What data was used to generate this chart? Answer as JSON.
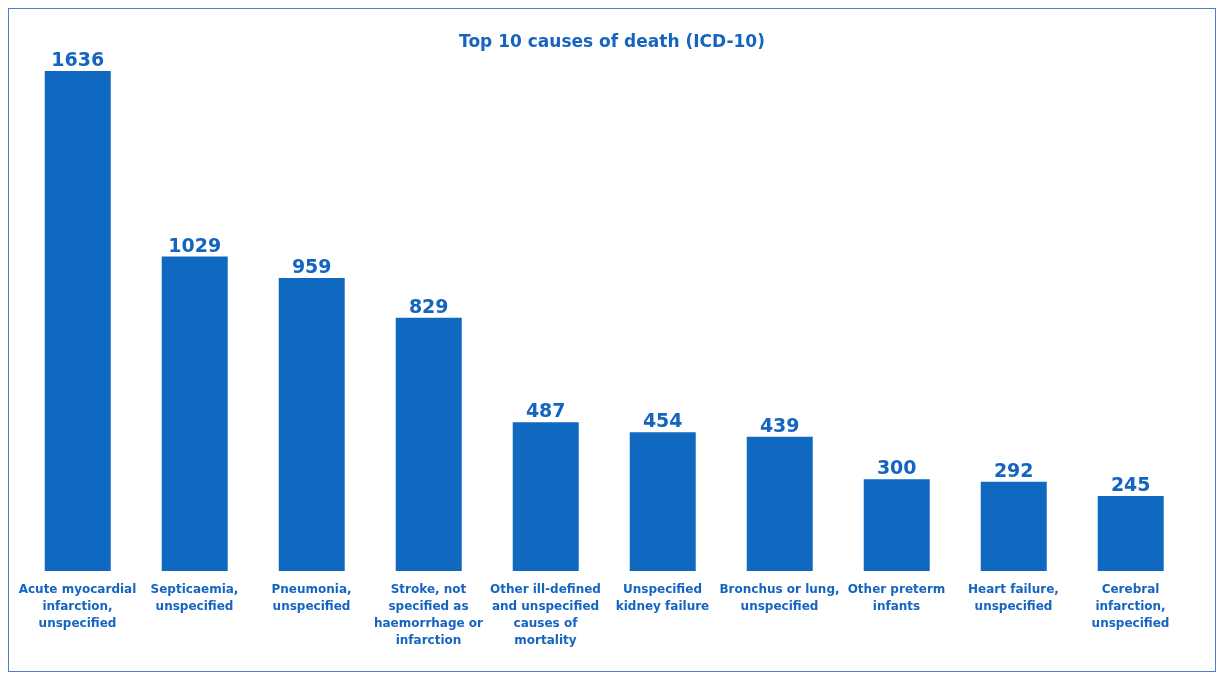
{
  "chart_data": {
    "type": "bar",
    "title": "Top 10 causes of death (ICD-10)",
    "categories": [
      "Acute myocardial infarction, unspecified",
      "Septicaemia, unspecified",
      "Pneumonia, unspecified",
      "Stroke, not specified as haemorrhage or infarction",
      "Other ill-defined and unspecified causes of mortality",
      "Unspecified kidney failure",
      "Bronchus or lung, unspecified",
      "Other preterm infants",
      "Heart failure, unspecified",
      "Cerebral infarction, unspecified"
    ],
    "values": [
      1636,
      1029,
      959,
      829,
      487,
      454,
      439,
      300,
      292,
      245
    ],
    "color": "#0f69c1",
    "data_labels": true
  }
}
